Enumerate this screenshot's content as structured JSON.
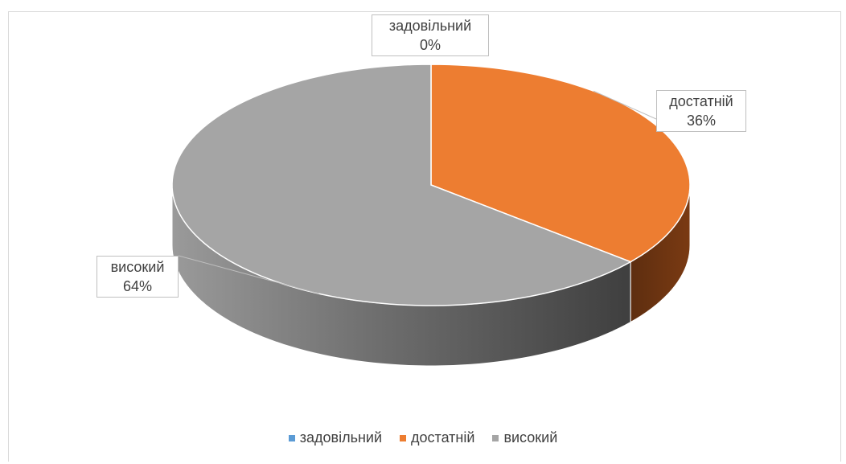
{
  "chart_data": {
    "type": "pie",
    "categories": [
      "задовільний",
      "достатній",
      "високий"
    ],
    "values": [
      0,
      36,
      64
    ],
    "value_labels": [
      "0%",
      "36%",
      "64%"
    ],
    "colors": [
      "#5b9bd5",
      "#ed7d31",
      "#a5a5a5"
    ],
    "legend_placement": "bottom"
  }
}
